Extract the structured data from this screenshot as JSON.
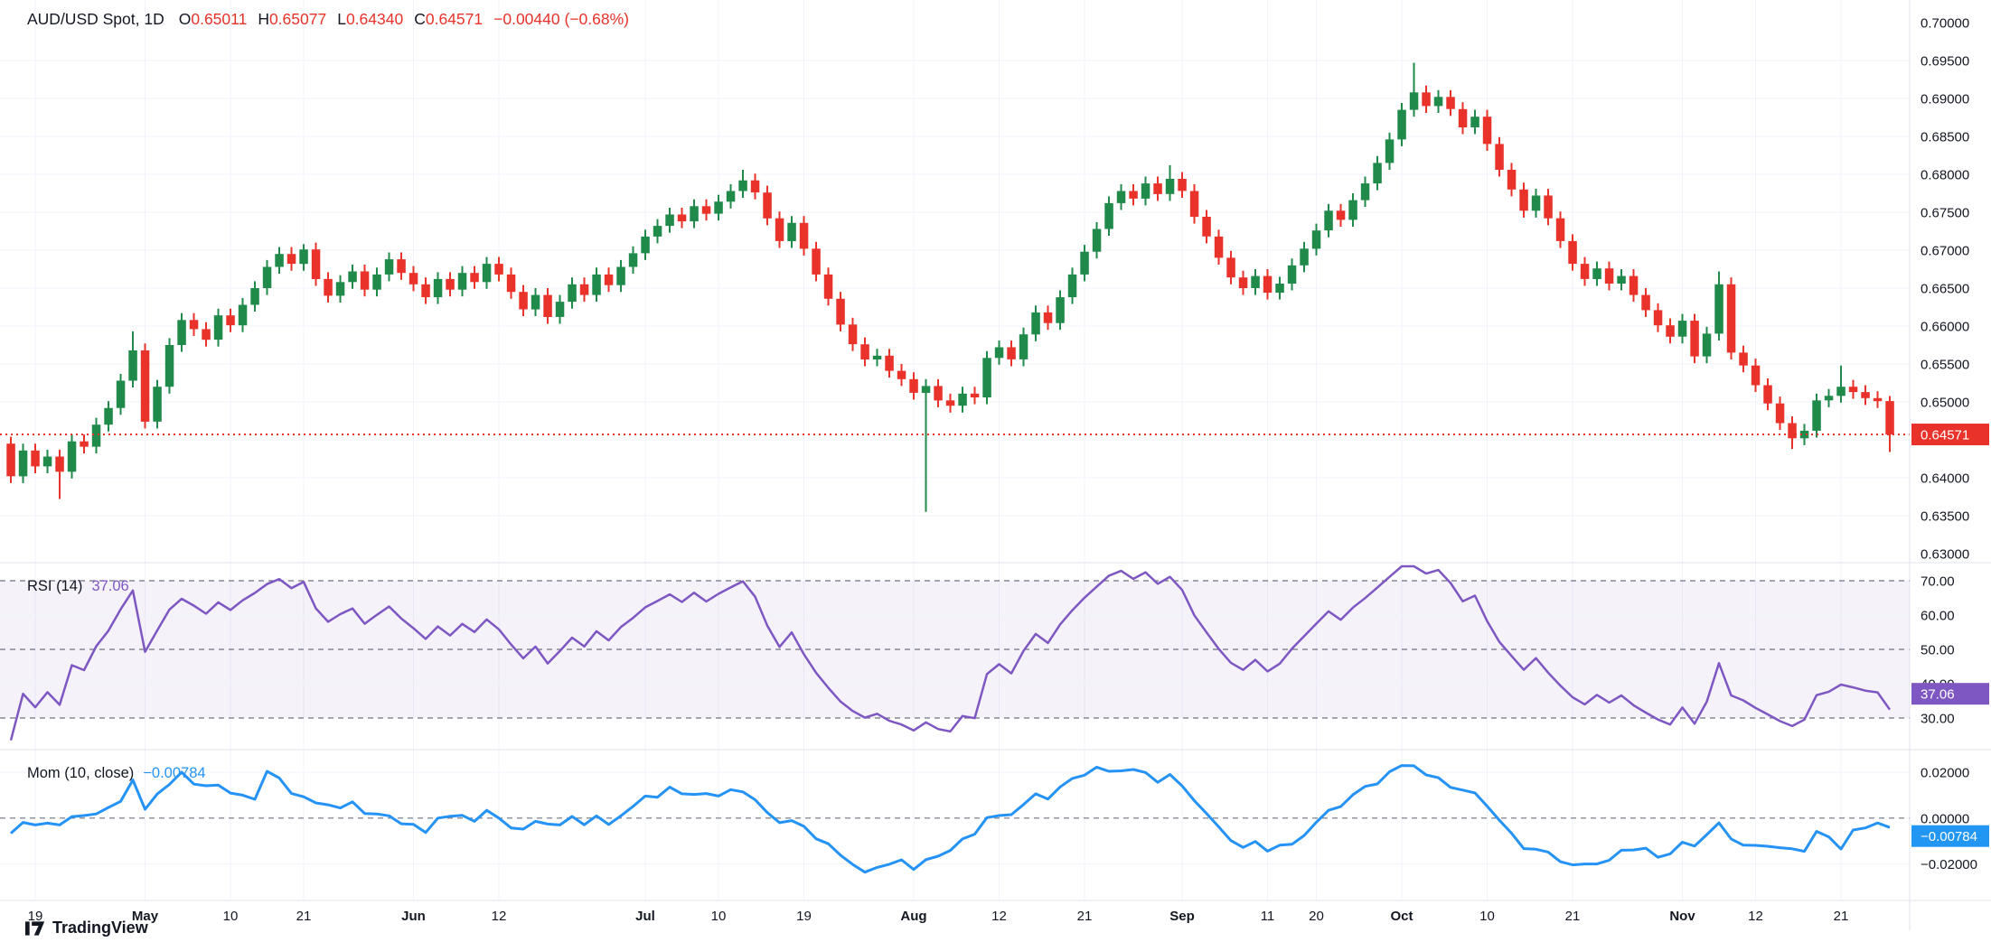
{
  "header": {
    "symbol": "AUD/USD Spot, 1D",
    "o_label": "O",
    "o_value": "0.65011",
    "h_label": "H",
    "h_value": "0.65077",
    "l_label": "L",
    "l_value": "0.64340",
    "c_label": "C",
    "c_value": "0.64571",
    "change": "−0.00440 (−0.68%)"
  },
  "rsi_panel": {
    "label": "RSI (14)",
    "value": "37.06"
  },
  "mom_panel": {
    "label": "Mom (10, close)",
    "value": "−0.00784"
  },
  "badges": {
    "price": "0.64571",
    "rsi": "37.06",
    "mom": "−0.00784"
  },
  "logo": {
    "text": "TradingView"
  },
  "colors": {
    "up": "#1f8a4a",
    "down": "#e8322a",
    "rsi": "#7e57c2",
    "mom": "#2593f5",
    "grid": "#f0f3fa",
    "separator": "#e0e3eb",
    "text": "#131722",
    "dashed": "#6f7380",
    "rsi_band": "rgba(126,87,194,0.08)",
    "badge_price": "#e8322a",
    "badge_rsi": "#7e57c2",
    "badge_mom": "#2196f3"
  },
  "axes": {
    "price_ticks": [
      "0.70000",
      "0.69500",
      "0.69000",
      "0.68500",
      "0.68000",
      "0.67500",
      "0.67000",
      "0.66500",
      "0.66000",
      "0.65500",
      "0.65000",
      "0.64500",
      "0.64000",
      "0.63500",
      "0.63000"
    ],
    "rsi_ticks": [
      "70.00",
      "60.00",
      "50.00",
      "40.00",
      "30.00"
    ],
    "mom_ticks": [
      "0.02000",
      "0.00000",
      "−0.02000"
    ]
  },
  "chart_data": {
    "type": "candlestick+indicators",
    "title": "AUD/USD Spot, 1D",
    "legend_ohlc": {
      "open": 0.65011,
      "high": 0.65077,
      "low": 0.6434,
      "close": 0.64571,
      "change": -0.0044,
      "change_pct": -0.68
    },
    "price_axis": {
      "min": 0.63,
      "max": 0.7,
      "step": 0.005
    },
    "last_price_line": 0.64571,
    "closes": [
      0.6402,
      0.6436,
      0.6415,
      0.6428,
      0.6408,
      0.6448,
      0.6441,
      0.647,
      0.6492,
      0.6528,
      0.6568,
      0.6474,
      0.652,
      0.6575,
      0.6608,
      0.6596,
      0.6582,
      0.6614,
      0.6601,
      0.6628,
      0.665,
      0.6678,
      0.6695,
      0.6682,
      0.6701,
      0.6662,
      0.664,
      0.6658,
      0.6672,
      0.6648,
      0.6668,
      0.6688,
      0.667,
      0.6655,
      0.6638,
      0.6662,
      0.6648,
      0.667,
      0.6658,
      0.6682,
      0.6668,
      0.6645,
      0.6622,
      0.6641,
      0.6612,
      0.6632,
      0.6655,
      0.6641,
      0.6668,
      0.6654,
      0.6678,
      0.6696,
      0.6718,
      0.6732,
      0.6747,
      0.6738,
      0.6758,
      0.6748,
      0.6764,
      0.6778,
      0.6792,
      0.6776,
      0.6742,
      0.6712,
      0.6736,
      0.6702,
      0.6668,
      0.6636,
      0.6602,
      0.6576,
      0.6556,
      0.6561,
      0.6541,
      0.653,
      0.6512,
      0.6521,
      0.6502,
      0.6495,
      0.6511,
      0.6506,
      0.6558,
      0.6572,
      0.6556,
      0.6589,
      0.6618,
      0.6604,
      0.6638,
      0.6668,
      0.6698,
      0.6728,
      0.6762,
      0.6778,
      0.6768,
      0.6788,
      0.6774,
      0.6794,
      0.6778,
      0.6744,
      0.6718,
      0.669,
      0.6664,
      0.665,
      0.6666,
      0.6644,
      0.6656,
      0.668,
      0.6702,
      0.6726,
      0.6752,
      0.674,
      0.6766,
      0.6788,
      0.6815,
      0.6846,
      0.6885,
      0.6908,
      0.689,
      0.6902,
      0.6886,
      0.6862,
      0.6876,
      0.684,
      0.6806,
      0.678,
      0.6752,
      0.6772,
      0.6742,
      0.6712,
      0.6682,
      0.6662,
      0.6676,
      0.6656,
      0.6666,
      0.6641,
      0.6621,
      0.6601,
      0.6586,
      0.6607,
      0.656,
      0.659,
      0.6655,
      0.6565,
      0.6548,
      0.6522,
      0.6498,
      0.6472,
      0.6452,
      0.6462,
      0.6502,
      0.6508,
      0.652,
      0.6513,
      0.6505,
      0.6501,
      0.64571
    ],
    "first_open": 0.6445,
    "default_wick": 0.0009,
    "special_wicks": {
      "4": {
        "low": 0.6372
      },
      "10": {
        "high": 0.6593
      },
      "24": {
        "high": 0.6708
      },
      "60": {
        "high": 0.6806
      },
      "75": {
        "low": 0.6355
      },
      "95": {
        "high": 0.6812
      },
      "115": {
        "high": 0.6947
      },
      "140": {
        "high": 0.6672
      },
      "146": {
        "low": 0.6438
      },
      "150": {
        "high": 0.6548
      }
    },
    "last_candle": {
      "open": 0.65011,
      "high": 0.65077,
      "low": 0.6434,
      "close": 0.64571
    },
    "indicator_warmup_closes": [
      0.6495,
      0.6488,
      0.648,
      0.6472,
      0.6465,
      0.6468,
      0.6455,
      0.6445,
      0.645,
      0.6438,
      0.6442,
      0.643,
      0.6452,
      0.6446,
      0.6455
    ],
    "indicators": [
      {
        "name": "RSI",
        "period": 14,
        "current": 37.06,
        "band": [
          30,
          70
        ],
        "guides": [
          30,
          50,
          70
        ],
        "axis_ticks": [
          30,
          40,
          50,
          60,
          70
        ]
      },
      {
        "name": "Momentum",
        "period": 10,
        "source": "close",
        "current": -0.00784,
        "axis_ticks": [
          -0.02,
          0.0,
          0.02
        ],
        "zero_line_dashed": true
      }
    ],
    "time_ticks": [
      {
        "label": "19",
        "i": 2,
        "bold": false
      },
      {
        "label": "May",
        "i": 11,
        "bold": true
      },
      {
        "label": "10",
        "i": 18,
        "bold": false
      },
      {
        "label": "21",
        "i": 24,
        "bold": false
      },
      {
        "label": "Jun",
        "i": 33,
        "bold": true
      },
      {
        "label": "12",
        "i": 40,
        "bold": false
      },
      {
        "label": "Jul",
        "i": 52,
        "bold": true
      },
      {
        "label": "10",
        "i": 58,
        "bold": false
      },
      {
        "label": "19",
        "i": 65,
        "bold": false
      },
      {
        "label": "Aug",
        "i": 74,
        "bold": true
      },
      {
        "label": "12",
        "i": 81,
        "bold": false
      },
      {
        "label": "21",
        "i": 88,
        "bold": false
      },
      {
        "label": "Sep",
        "i": 96,
        "bold": true
      },
      {
        "label": "11",
        "i": 103,
        "bold": false
      },
      {
        "label": "20",
        "i": 107,
        "bold": false
      },
      {
        "label": "Oct",
        "i": 114,
        "bold": true
      },
      {
        "label": "10",
        "i": 121,
        "bold": false
      },
      {
        "label": "21",
        "i": 128,
        "bold": false
      },
      {
        "label": "Nov",
        "i": 137,
        "bold": true
      },
      {
        "label": "12",
        "i": 143,
        "bold": false
      },
      {
        "label": "21",
        "i": 150,
        "bold": false
      }
    ]
  }
}
